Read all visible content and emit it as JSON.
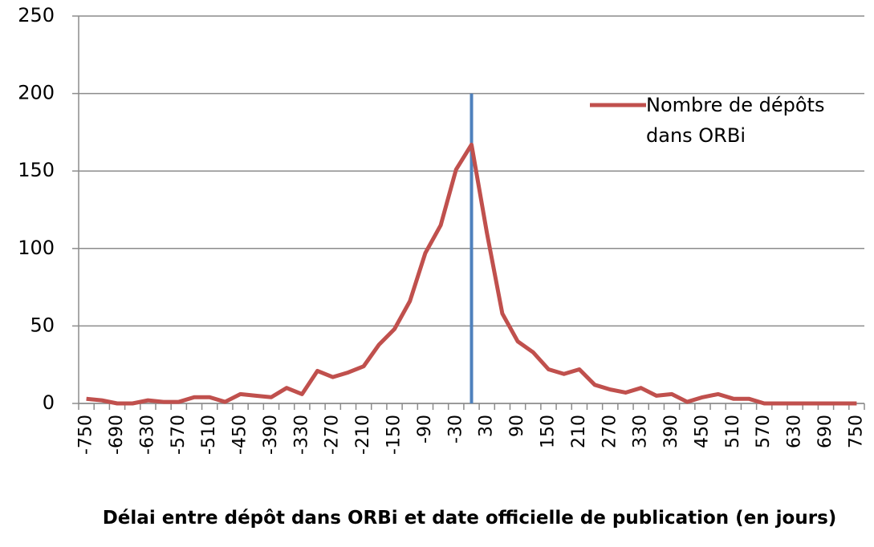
{
  "chart_data": {
    "type": "line",
    "xlabel": "Délai entre dépôt dans ORBi et date officielle de publication (en jours)",
    "categories": [
      "-750",
      null,
      "-690",
      null,
      "-630",
      null,
      "-570",
      null,
      "-510",
      null,
      "-450",
      null,
      "-390",
      null,
      "-330",
      null,
      "-270",
      null,
      "-210",
      null,
      "-150",
      null,
      "-90",
      null,
      "-30",
      null,
      "30",
      null,
      "90",
      null,
      "150",
      null,
      "210",
      null,
      "270",
      null,
      "330",
      null,
      "390",
      null,
      "450",
      null,
      "510",
      null,
      "570",
      null,
      "630",
      null,
      "690",
      null,
      "750"
    ],
    "series": [
      {
        "name": "Nombre de dépôts dans ORBi",
        "color": "#c0504d",
        "values": [
          3,
          2,
          0,
          0,
          2,
          1,
          1,
          4,
          4,
          1,
          6,
          5,
          4,
          10,
          6,
          21,
          17,
          20,
          24,
          38,
          48,
          66,
          97,
          115,
          151,
          167,
          110,
          58,
          40,
          33,
          22,
          19,
          22,
          12,
          9,
          7,
          10,
          5,
          6,
          1,
          4,
          6,
          3,
          3,
          0,
          0,
          0,
          0,
          0,
          0,
          0
        ]
      }
    ],
    "ylim": [
      0,
      250
    ],
    "yticks": [
      0,
      50,
      100,
      150,
      200,
      250
    ],
    "grid": true,
    "legend": "top-right"
  }
}
